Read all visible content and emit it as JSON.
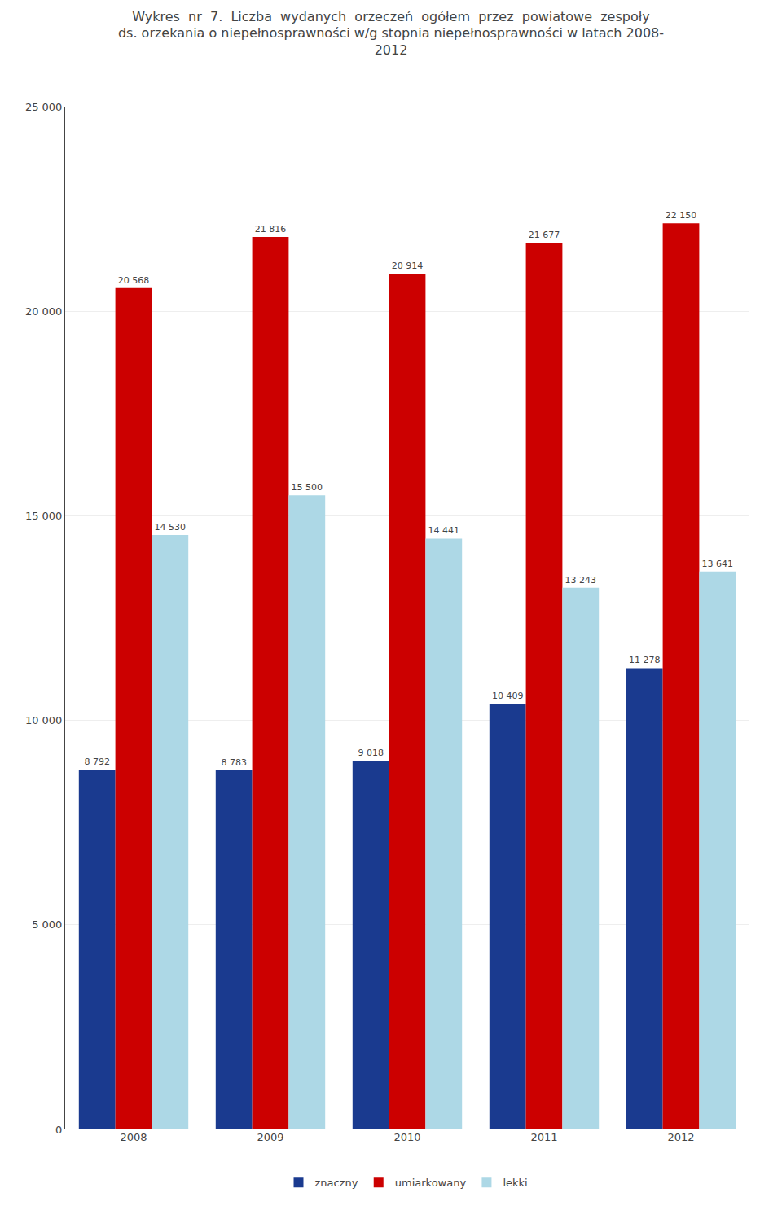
{
  "chart_data": {
    "type": "bar",
    "title": "Wykres  nr  7.  Liczba  wydanych  orzeczeń  ogółem  przez  powiatowe  zespoły\nds. orzekania o niepełnosprawności w/g stopnia niepełnosprawności w latach 2008-\n2012",
    "categories": [
      "2008",
      "2009",
      "2010",
      "2011",
      "2012"
    ],
    "series": [
      {
        "name": "znaczny",
        "color": "#1a3a8f",
        "values": [
          8792,
          8783,
          9018,
          10409,
          11278
        ],
        "value_labels": [
          "8 792",
          "8 783",
          "9 018",
          "10 409",
          "11 278"
        ]
      },
      {
        "name": "umiarkowany",
        "color": "#cc0000",
        "values": [
          20568,
          21816,
          20914,
          21677,
          22150
        ],
        "value_labels": [
          "20 568",
          "21 816",
          "20 914",
          "21 677",
          "22 150"
        ]
      },
      {
        "name": "lekki",
        "color": "#add8e6",
        "values": [
          14530,
          15500,
          14441,
          13243,
          13641
        ],
        "value_labels": [
          "14 530",
          "15 500",
          "14 441",
          "13 243",
          "13 641"
        ]
      }
    ],
    "ylim": [
      0,
      25000
    ],
    "yticks": [
      0,
      {
        "value": 5000,
        "label": "5 000"
      },
      {
        "value": 10000,
        "label": "10 000"
      },
      {
        "value": 15000,
        "label": "15 000"
      },
      {
        "value": 20000,
        "label": "20 000"
      },
      {
        "value": 25000,
        "label": "25 000"
      }
    ],
    "grid": true,
    "legend": "bottom",
    "data_labels": true
  }
}
